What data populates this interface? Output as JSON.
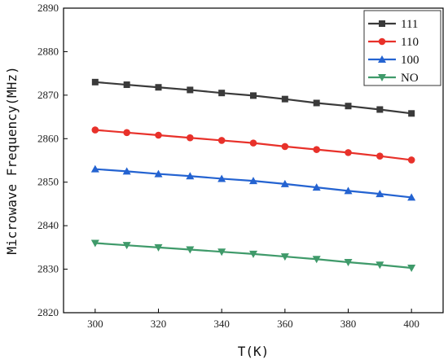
{
  "chart_data": {
    "type": "line",
    "xlabel": "T(K)",
    "ylabel": "Microwave Frequency(MHz)",
    "x": [
      300,
      310,
      320,
      330,
      340,
      350,
      360,
      370,
      380,
      390,
      400
    ],
    "xlim": [
      290,
      410
    ],
    "ylim": [
      2820,
      2890
    ],
    "xticks": [
      300,
      320,
      340,
      360,
      380,
      400
    ],
    "yticks": [
      2820,
      2830,
      2840,
      2850,
      2860,
      2870,
      2880,
      2890
    ],
    "grid": false,
    "legend_position": "top-right",
    "series": [
      {
        "name": "111",
        "color": "#3a3a3a",
        "marker": "square",
        "values": [
          2873.0,
          2872.4,
          2871.8,
          2871.2,
          2870.5,
          2869.9,
          2869.1,
          2868.2,
          2867.5,
          2866.7,
          2865.8
        ]
      },
      {
        "name": "110",
        "color": "#e8312a",
        "marker": "circle",
        "values": [
          2862.0,
          2861.4,
          2860.8,
          2860.2,
          2859.6,
          2859.0,
          2858.2,
          2857.5,
          2856.8,
          2856.0,
          2855.1
        ]
      },
      {
        "name": "100",
        "color": "#2463d1",
        "marker": "triangle-up",
        "values": [
          2853.0,
          2852.5,
          2851.9,
          2851.4,
          2850.8,
          2850.3,
          2849.6,
          2848.8,
          2848.0,
          2847.3,
          2846.5
        ]
      },
      {
        "name": "NO",
        "color": "#3f9a6a",
        "marker": "triangle-down",
        "values": [
          2836.0,
          2835.5,
          2835.0,
          2834.5,
          2834.0,
          2833.5,
          2832.9,
          2832.3,
          2831.6,
          2831.0,
          2830.3
        ]
      }
    ]
  }
}
